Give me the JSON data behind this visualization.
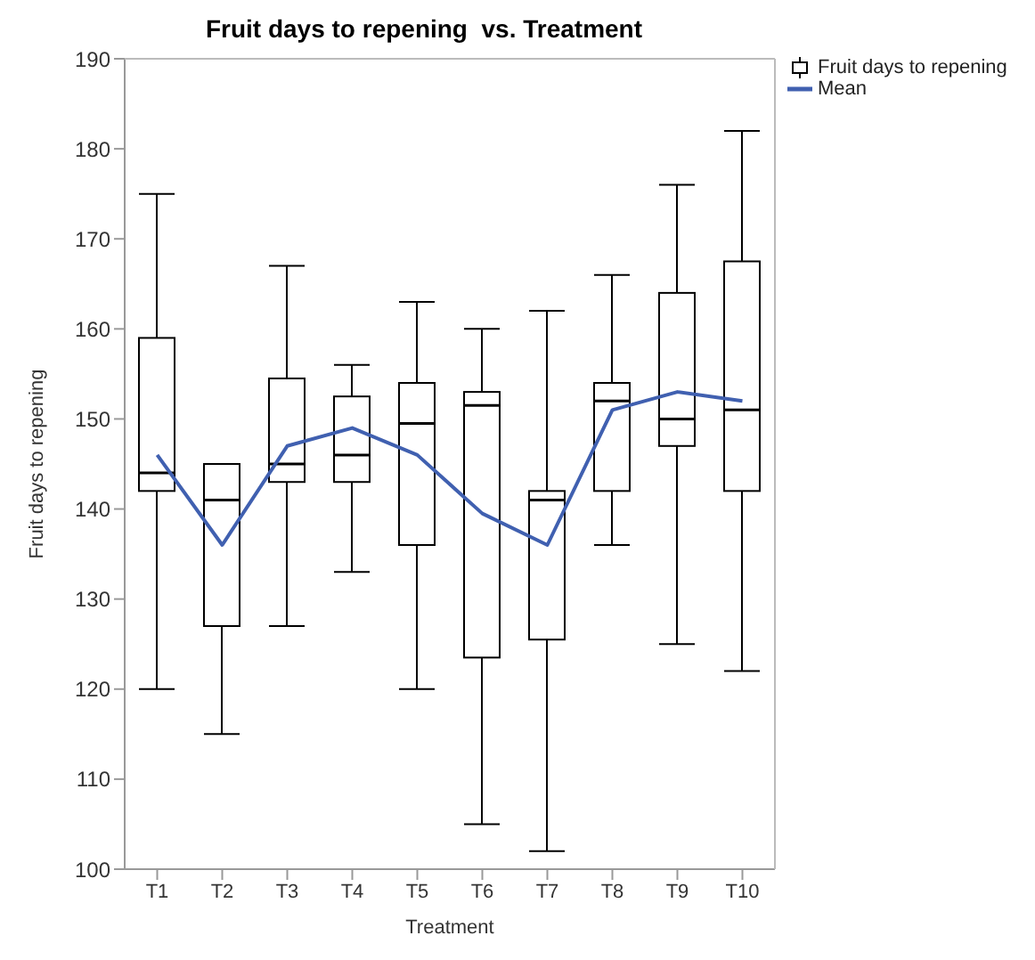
{
  "chart_data": {
    "type": "box",
    "title": "Fruit days to repening  vs. Treatment",
    "xlabel": "Treatment",
    "ylabel": "Fruit days to repening",
    "categories": [
      "T1",
      "T2",
      "T3",
      "T4",
      "T5",
      "T6",
      "T7",
      "T8",
      "T9",
      "T10"
    ],
    "ylim": [
      100,
      190
    ],
    "yticks": [
      100,
      110,
      120,
      130,
      140,
      150,
      160,
      170,
      180,
      190
    ],
    "grid": false,
    "legend": "top right",
    "series": [
      {
        "name": "Fruit days to repening",
        "color": "#000000",
        "boxes": [
          {
            "low": 120,
            "q1": 142,
            "median": 144,
            "q3": 159,
            "high": 175
          },
          {
            "low": 115,
            "q1": 127,
            "median": 141,
            "q3": 145,
            "high": 145
          },
          {
            "low": 127,
            "q1": 143,
            "median": 145,
            "q3": 154.5,
            "high": 167
          },
          {
            "low": 133,
            "q1": 143,
            "median": 146,
            "q3": 152.5,
            "high": 156
          },
          {
            "low": 120,
            "q1": 136,
            "median": 149.5,
            "q3": 154,
            "high": 163
          },
          {
            "low": 105,
            "q1": 123.5,
            "median": 151.5,
            "q3": 153,
            "high": 160
          },
          {
            "low": 102,
            "q1": 125.5,
            "median": 141,
            "q3": 142,
            "high": 162
          },
          {
            "low": 136,
            "q1": 142,
            "median": 152,
            "q3": 154,
            "high": 166
          },
          {
            "low": 125,
            "q1": 147,
            "median": 150,
            "q3": 164,
            "high": 176
          },
          {
            "low": 122,
            "q1": 142,
            "median": 151,
            "q3": 167.5,
            "high": 182
          }
        ]
      },
      {
        "name": "Mean",
        "type": "line",
        "color": "#4060b0",
        "marker": "none",
        "values": [
          146,
          136,
          147,
          149,
          146,
          139.5,
          136,
          151,
          153,
          152
        ]
      }
    ]
  }
}
